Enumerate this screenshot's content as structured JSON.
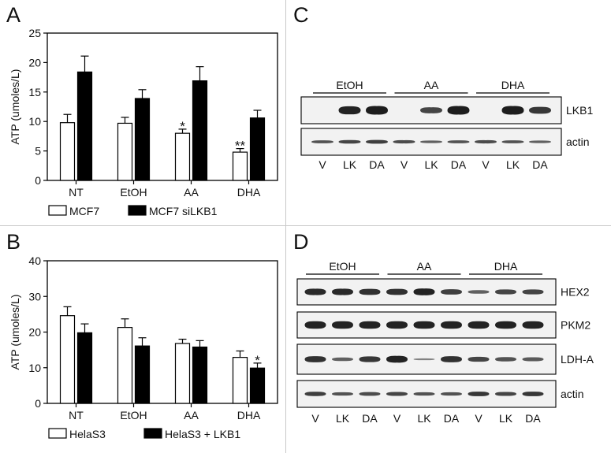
{
  "panels": {
    "A": "A",
    "B": "B",
    "C": "C",
    "D": "D"
  },
  "chart_data": [
    {
      "type": "bar",
      "panel": "A",
      "ylabel": "ATP (umoles/L)",
      "ylim": [
        0,
        25
      ],
      "yticks": [
        0,
        5,
        10,
        15,
        20,
        25
      ],
      "categories": [
        "NT",
        "EtOH",
        "AA",
        "DHA"
      ],
      "series": [
        {
          "name": "MCF7",
          "color": "#ffffff",
          "values": [
            9.8,
            9.7,
            8.0,
            4.8
          ],
          "errors": [
            1.4,
            1.0,
            0.7,
            0.6
          ]
        },
        {
          "name": "MCF7 siLKB1",
          "color": "#000000",
          "values": [
            18.4,
            13.9,
            16.9,
            10.6
          ],
          "errors": [
            2.7,
            1.5,
            2.4,
            1.3
          ]
        }
      ],
      "annotations": [
        {
          "category": "AA",
          "series": 0,
          "text": "*"
        },
        {
          "category": "DHA",
          "series": 0,
          "text": "**"
        }
      ]
    },
    {
      "type": "bar",
      "panel": "B",
      "ylabel": "ATP (umoles/L)",
      "ylim": [
        0,
        40
      ],
      "yticks": [
        0,
        10,
        20,
        30,
        40
      ],
      "categories": [
        "NT",
        "EtOH",
        "AA",
        "DHA"
      ],
      "series": [
        {
          "name": "HelaS3",
          "color": "#ffffff",
          "values": [
            24.6,
            21.3,
            16.8,
            12.9
          ],
          "errors": [
            2.5,
            2.4,
            1.2,
            1.8
          ]
        },
        {
          "name": "HelaS3 + LKB1",
          "color": "#000000",
          "values": [
            19.8,
            16.1,
            15.8,
            9.9
          ],
          "errors": [
            2.5,
            2.3,
            1.8,
            1.4
          ]
        }
      ],
      "annotations": [
        {
          "category": "DHA",
          "series": 1,
          "text": "*"
        }
      ]
    }
  ],
  "blot_c": {
    "groups": [
      "EtOH",
      "AA",
      "DHA"
    ],
    "lanes": [
      "V",
      "LK",
      "DA",
      "V",
      "LK",
      "DA",
      "V",
      "LK",
      "DA"
    ],
    "bands": [
      "LKB1",
      "actin"
    ]
  },
  "blot_d": {
    "groups": [
      "EtOH",
      "AA",
      "DHA"
    ],
    "lanes": [
      "V",
      "LK",
      "DA",
      "V",
      "LK",
      "DA",
      "V",
      "LK",
      "DA"
    ],
    "bands": [
      "HEX2",
      "PKM2",
      "LDH-A",
      "actin"
    ]
  }
}
